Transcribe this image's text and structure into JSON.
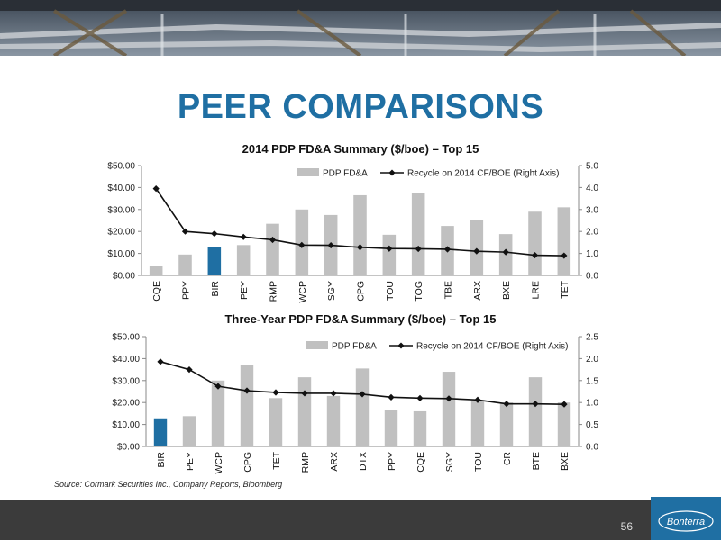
{
  "slide": {
    "title": "PEER COMPARISONS",
    "source": "Source: Cormark Securities Inc., Company Reports, Bloomberg",
    "page_number": "56",
    "logo_text": "Bonterra"
  },
  "colors": {
    "title": "#1f6fa3",
    "bar": "#c0c0c0",
    "bar_highlight": "#1f6fa3",
    "line": "#111111",
    "footer": "#3b3b3b"
  },
  "chart_data": [
    {
      "type": "bar",
      "title": "2014 PDP FD&A Summary ($/boe) – Top 15",
      "categories": [
        "CQE",
        "PPY",
        "BIR",
        "PEY",
        "RMP",
        "WCP",
        "SGY",
        "CPG",
        "TOU",
        "TOG",
        "TBE",
        "ARX",
        "BXE",
        "LRE",
        "TET"
      ],
      "series": [
        {
          "name": "PDP FD&A",
          "axis": "left",
          "type": "bar",
          "values": [
            4.5,
            9.5,
            12.8,
            13.8,
            23.5,
            30.0,
            27.5,
            36.5,
            18.5,
            37.5,
            22.5,
            25.0,
            18.8,
            29.0,
            31.0
          ]
        },
        {
          "name": "Recycle on 2014 CF/BOE (Right Axis)",
          "axis": "right",
          "type": "line",
          "values": [
            3.95,
            2.0,
            1.9,
            1.75,
            1.62,
            1.38,
            1.37,
            1.28,
            1.22,
            1.21,
            1.19,
            1.1,
            1.06,
            0.92,
            0.9
          ]
        }
      ],
      "highlight": "BIR",
      "y_left": {
        "min": 0,
        "max": 50,
        "ticks": [
          "$0.00",
          "$10.00",
          "$20.00",
          "$30.00",
          "$40.00",
          "$50.00"
        ]
      },
      "y_right": {
        "min": 0,
        "max": 5,
        "ticks": [
          "0.0",
          "1.0",
          "2.0",
          "3.0",
          "4.0",
          "5.0"
        ]
      },
      "legend": "top-right",
      "grid": false
    },
    {
      "type": "bar",
      "title": "Three-Year PDP FD&A Summary ($/boe) – Top 15",
      "categories": [
        "BIR",
        "PEY",
        "WCP",
        "CPG",
        "TET",
        "RMP",
        "ARX",
        "DTX",
        "PPY",
        "CQE",
        "SGY",
        "TOU",
        "CR",
        "BTE",
        "BXE"
      ],
      "series": [
        {
          "name": "PDP FD&A",
          "axis": "left",
          "type": "bar",
          "values": [
            12.8,
            13.8,
            30.0,
            37.0,
            22.0,
            31.5,
            23.0,
            35.5,
            16.5,
            16.0,
            34.0,
            21.0,
            20.0,
            31.5,
            20.0
          ]
        },
        {
          "name": "Recycle on 2014 CF/BOE (Right Axis)",
          "axis": "right",
          "type": "line",
          "values": [
            1.93,
            1.75,
            1.37,
            1.27,
            1.23,
            1.21,
            1.21,
            1.19,
            1.12,
            1.1,
            1.09,
            1.06,
            0.97,
            0.97,
            0.96
          ]
        }
      ],
      "highlight": "BIR",
      "y_left": {
        "min": 0,
        "max": 50,
        "ticks": [
          "$0.00",
          "$10.00",
          "$20.00",
          "$30.00",
          "$40.00",
          "$50.00"
        ]
      },
      "y_right": {
        "min": 0,
        "max": 2.5,
        "ticks": [
          "0.0",
          "0.5",
          "1.0",
          "1.5",
          "2.0",
          "2.5"
        ]
      },
      "legend": "top-right",
      "grid": false
    }
  ]
}
